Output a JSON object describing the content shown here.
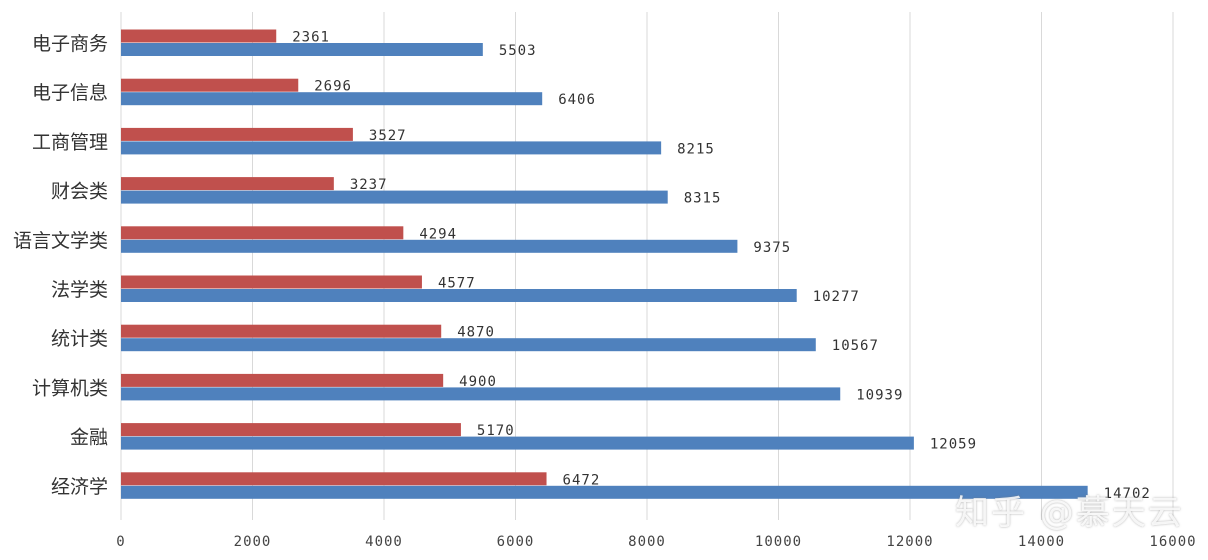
{
  "chart_data": {
    "type": "bar",
    "orientation": "horizontal",
    "categories": [
      "电子商务",
      "电子信息",
      "工商管理",
      "财会类",
      "语言文学类",
      "法学类",
      "统计类",
      "计算机类",
      "金融",
      "经济学"
    ],
    "series": [
      {
        "values": [
          2361,
          2696,
          3527,
          3237,
          4294,
          4577,
          4870,
          4900,
          5170,
          6472
        ],
        "color": "#c0504d"
      },
      {
        "values": [
          5503,
          6406,
          8215,
          8315,
          9375,
          10277,
          10567,
          10939,
          12059,
          14702
        ],
        "color": "#4f81bd"
      }
    ],
    "xlim": [
      0,
      16000
    ],
    "x_ticks": [
      0,
      2000,
      4000,
      6000,
      8000,
      10000,
      12000,
      14000,
      16000
    ],
    "grid": "vertical",
    "legend": "none",
    "title": "",
    "xlabel": "",
    "ylabel": ""
  },
  "watermark": "知乎 @慕天云"
}
